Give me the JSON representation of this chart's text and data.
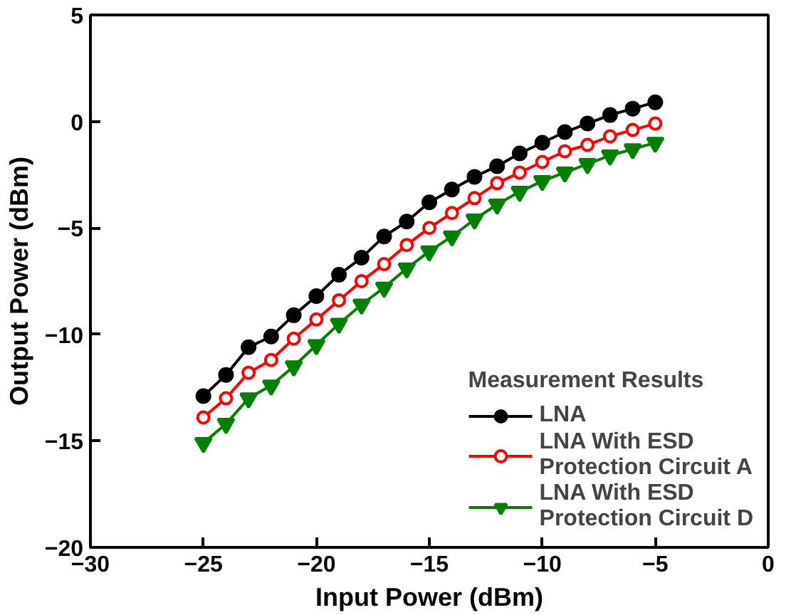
{
  "chart_data": {
    "type": "line",
    "xlabel": "Input Power (dBm)",
    "ylabel": "Output Power (dBm)",
    "legend_title": "Measurement Results",
    "x": [
      -25,
      -24,
      -23,
      -22,
      -21,
      -20,
      -19,
      -18,
      -17,
      -16,
      -15,
      -14,
      -13,
      -12,
      -11,
      -10,
      -9,
      -8,
      -7,
      -6,
      -5
    ],
    "series": [
      {
        "name": "LNA",
        "color": "#000000",
        "marker": "circle",
        "values": [
          -12.9,
          -11.9,
          -10.6,
          -10.1,
          -9.1,
          -8.2,
          -7.2,
          -6.4,
          -5.4,
          -4.7,
          -3.8,
          -3.2,
          -2.6,
          -2.1,
          -1.5,
          -1.0,
          -0.5,
          -0.1,
          0.3,
          0.6,
          0.9
        ]
      },
      {
        "name": "LNA With ESD Protection Circuit A",
        "color": "#ff0000",
        "marker": "circle_open",
        "values": [
          -13.9,
          -13.0,
          -11.8,
          -11.2,
          -10.2,
          -9.3,
          -8.4,
          -7.5,
          -6.7,
          -5.8,
          -5.0,
          -4.3,
          -3.6,
          -2.9,
          -2.4,
          -1.9,
          -1.4,
          -1.1,
          -0.7,
          -0.4,
          -0.1
        ]
      },
      {
        "name": "LNA With ESD Protection Circuit D",
        "color": "#008000",
        "marker": "triangle_down",
        "values": [
          -15.1,
          -14.2,
          -13.0,
          -12.4,
          -11.5,
          -10.5,
          -9.5,
          -8.6,
          -7.8,
          -6.9,
          -6.1,
          -5.4,
          -4.6,
          -3.9,
          -3.3,
          -2.8,
          -2.4,
          -2.0,
          -1.6,
          -1.3,
          -1.0
        ]
      }
    ],
    "xlim": [
      -30,
      0
    ],
    "xticks": [
      -30,
      -25,
      -20,
      -15,
      -10,
      -5,
      0
    ],
    "ylim": [
      -20,
      5
    ],
    "yticks": [
      -20,
      -15,
      -10,
      -5,
      0,
      5
    ],
    "grid": false,
    "legend": "bottom right",
    "line_style": "solid"
  }
}
